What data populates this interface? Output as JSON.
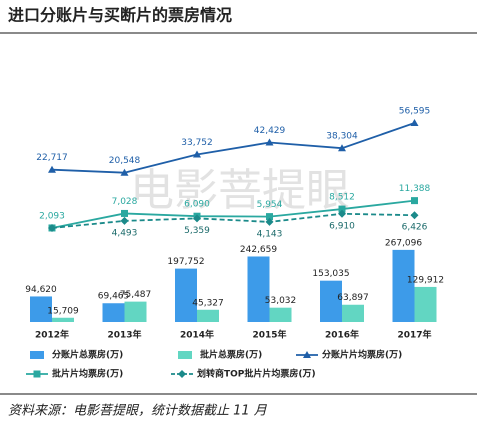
{
  "chart_data": {
    "type": "bar-line",
    "title": "进口分账片与买断片的票房情况",
    "watermark": "电影菩提眼",
    "source": "资料来源：电影菩提眼，统计数据截止 11 月",
    "categories": [
      "2012年",
      "2013年",
      "2014年",
      "2015年",
      "2016年",
      "2017年"
    ],
    "ylim": [
      0,
      300000
    ],
    "y2lim": [
      8000,
      66000
    ],
    "y3lim": [
      -2000,
      15000
    ],
    "series": [
      {
        "name": "分账片总票房(万)",
        "type": "bar",
        "color": "#3d9be9",
        "values": [
          94620,
          69465,
          197752,
          242659,
          153035,
          267096
        ],
        "value_labels": [
          "94,620",
          "69,465",
          "197,752",
          "242,659",
          "153,035",
          "267,096"
        ]
      },
      {
        "name": "批片总票房(万)",
        "type": "bar",
        "color": "#62d6c2",
        "values": [
          15709,
          75487,
          45327,
          53032,
          63897,
          129912
        ],
        "value_labels": [
          "15,709",
          "75,487",
          "45,327",
          "53,032",
          "63,897",
          "129,912"
        ]
      },
      {
        "name": "分账片片均票房(万)",
        "type": "line",
        "axis": "y2",
        "color": "#1f5fa8",
        "marker": "triangle",
        "values": [
          22717,
          20548,
          33752,
          42429,
          38304,
          56595
        ],
        "value_labels": [
          "22,717",
          "20,548",
          "33,752",
          "42,429",
          "38,304",
          "56,595"
        ]
      },
      {
        "name": "批片片均票房(万)",
        "type": "line",
        "axis": "y3",
        "color": "#2aa8a0",
        "marker": "square",
        "values": [
          2093,
          7028,
          6090,
          5954,
          8512,
          11388
        ],
        "value_labels": [
          "2,093",
          "7,028",
          "6,090",
          "5,954",
          "8,512",
          "11,388"
        ]
      },
      {
        "name": "划转商TOP批片片均票房(万)",
        "type": "line",
        "axis": "y3",
        "color": "#1b8a8a",
        "marker": "diamond",
        "dash": true,
        "values": [
          2093,
          4493,
          5359,
          4143,
          6910,
          6426
        ],
        "value_labels": [
          null,
          "4,493",
          "5,359",
          "4,143",
          "6,910",
          "6,426"
        ]
      }
    ]
  }
}
